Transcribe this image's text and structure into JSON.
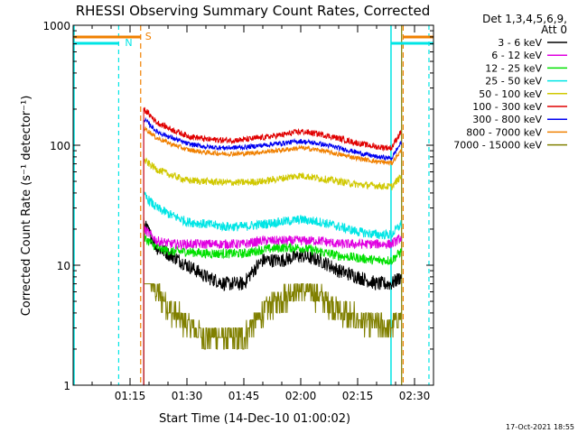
{
  "chart_data": {
    "type": "line",
    "title": "RHESSI Observing Summary Count Rates, Corrected",
    "xlabel": "Start Time (14-Dec-10 01:00:02)",
    "ylabel": "Corrected Count Rate (s⁻¹ detector⁻¹)",
    "yscale": "log",
    "xlim_minutes": [
      0,
      95
    ],
    "ylim": [
      1,
      1000
    ],
    "x_ticks": [
      {
        "minute": 15,
        "label": "01:15"
      },
      {
        "minute": 30,
        "label": "01:30"
      },
      {
        "minute": 45,
        "label": "01:45"
      },
      {
        "minute": 60,
        "label": "02:00"
      },
      {
        "minute": 75,
        "label": "02:15"
      },
      {
        "minute": 90,
        "label": "02:30"
      }
    ],
    "y_ticks": [
      {
        "value": 1,
        "label": "1"
      },
      {
        "value": 10,
        "label": "10"
      },
      {
        "value": 100,
        "label": "100"
      },
      {
        "value": 1000,
        "label": "1000"
      }
    ],
    "legend_header": [
      "Det 1,3,4,5,6,9,",
      "Att 0"
    ],
    "legend_position": "right, outside plot",
    "series": [
      {
        "name": "3 - 6 keV",
        "color": "#000000",
        "x_minutes": [
          18.6,
          22,
          26,
          30,
          35,
          40,
          45,
          50,
          55,
          60,
          65,
          70,
          75,
          80,
          84,
          86.5
        ],
        "values": [
          22,
          14,
          12,
          10,
          8,
          7,
          7,
          11,
          11,
          12,
          11,
          9,
          8,
          7,
          7,
          8
        ]
      },
      {
        "name": "6 - 12 keV",
        "color": "#e000e0",
        "x_minutes": [
          18.6,
          22,
          26,
          30,
          35,
          40,
          45,
          50,
          55,
          60,
          65,
          70,
          75,
          80,
          84,
          86.5
        ],
        "values": [
          20,
          16,
          15,
          15,
          15,
          15,
          15,
          16,
          16,
          16,
          16,
          15,
          15,
          15,
          15,
          17
        ]
      },
      {
        "name": "12 - 25 keV",
        "color": "#00e000",
        "x_minutes": [
          18.6,
          22,
          26,
          30,
          35,
          40,
          45,
          50,
          55,
          60,
          65,
          70,
          75,
          80,
          84,
          86.5
        ],
        "values": [
          17,
          14,
          13,
          13,
          12.5,
          12.5,
          12.5,
          13.5,
          14,
          14,
          13,
          12,
          11.5,
          11,
          11,
          13
        ]
      },
      {
        "name": "25 - 50 keV",
        "color": "#00e5e5",
        "x_minutes": [
          18.6,
          22,
          26,
          30,
          35,
          40,
          45,
          50,
          55,
          60,
          65,
          70,
          75,
          80,
          84,
          86.5
        ],
        "values": [
          38,
          30,
          26,
          23,
          22,
          21,
          21,
          22,
          23,
          24,
          23,
          21,
          19,
          18,
          18,
          22
        ]
      },
      {
        "name": "50 - 100 keV",
        "color": "#d0c800",
        "x_minutes": [
          18.6,
          22,
          26,
          30,
          35,
          40,
          45,
          50,
          55,
          60,
          65,
          70,
          75,
          80,
          84,
          86.5
        ],
        "values": [
          75,
          63,
          56,
          51,
          50,
          49,
          49,
          50,
          53,
          56,
          53,
          50,
          47,
          46,
          45,
          55
        ]
      },
      {
        "name": "100 - 300 keV",
        "color": "#e00000",
        "x_minutes": [
          18.6,
          22,
          26,
          30,
          35,
          40,
          45,
          50,
          55,
          60,
          65,
          70,
          75,
          80,
          84,
          86.5
        ],
        "values": [
          200,
          155,
          135,
          120,
          112,
          110,
          111,
          116,
          122,
          130,
          124,
          114,
          104,
          97,
          95,
          130
        ]
      },
      {
        "name": "300 - 800 keV",
        "color": "#0000f0",
        "x_minutes": [
          18.6,
          22,
          26,
          30,
          35,
          40,
          45,
          50,
          55,
          60,
          65,
          70,
          75,
          80,
          84,
          86.5
        ],
        "values": [
          165,
          130,
          115,
          103,
          97,
          95,
          96,
          100,
          104,
          108,
          103,
          95,
          87,
          80,
          78,
          105
        ]
      },
      {
        "name": "800 - 7000 keV",
        "color": "#f08000",
        "x_minutes": [
          18.6,
          22,
          26,
          30,
          35,
          40,
          45,
          50,
          55,
          60,
          65,
          70,
          75,
          80,
          84,
          86.5
        ],
        "values": [
          140,
          115,
          102,
          92,
          87,
          85,
          85,
          88,
          91,
          95,
          91,
          84,
          78,
          73,
          71,
          90
        ]
      },
      {
        "name": "7000 - 15000 keV",
        "color": "#808000",
        "x_minutes": [
          18.6,
          22,
          26,
          30,
          35,
          40,
          45,
          50,
          55,
          60,
          65,
          70,
          75,
          80,
          84,
          86.5
        ],
        "values": [
          10,
          6,
          4.2,
          3.2,
          2.6,
          2.5,
          2.5,
          4.0,
          5.5,
          6.5,
          5.5,
          4.2,
          3.5,
          3.2,
          3.0,
          4.0
        ]
      }
    ],
    "annotations": [
      {
        "label": "N",
        "color": "#00e5e5",
        "x_minutes": 12
      },
      {
        "label": "S",
        "color": "#f08000",
        "x_minutes": 17.8
      }
    ]
  },
  "footer_timestamp": "17-Oct-2021 18:55"
}
